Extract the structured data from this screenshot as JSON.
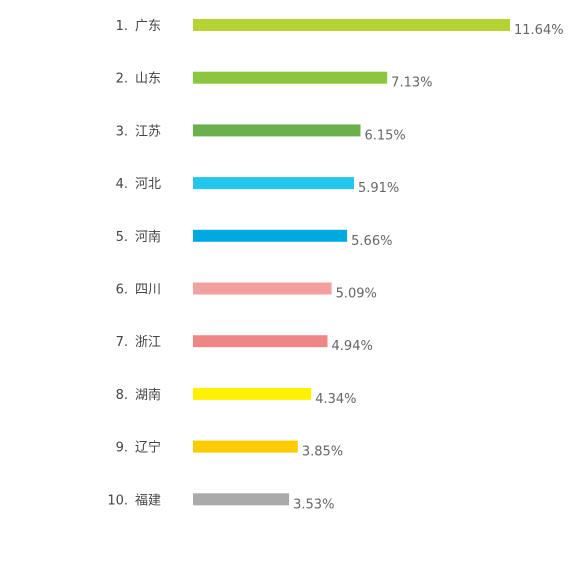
{
  "chart_data": {
    "type": "bar",
    "orientation": "horizontal",
    "categories": [
      "广东",
      "山东",
      "江苏",
      "河北",
      "河南",
      "四川",
      "浙江",
      "湖南",
      "辽宁",
      "福建"
    ],
    "ranks": [
      "1.",
      "2.",
      "3.",
      "4.",
      "5.",
      "6.",
      "7.",
      "8.",
      "9.",
      "10."
    ],
    "values": [
      11.64,
      7.13,
      6.15,
      5.91,
      5.66,
      5.09,
      4.94,
      4.34,
      3.85,
      3.53
    ],
    "value_labels": [
      "11.64%",
      "7.13%",
      "6.15%",
      "5.91%",
      "5.66%",
      "5.09%",
      "4.94%",
      "4.34%",
      "3.85%",
      "3.53%"
    ],
    "colors": [
      "#b5d334",
      "#8cc63f",
      "#6ab04c",
      "#23c7ed",
      "#00a9e0",
      "#f2a0a0",
      "#f08586",
      "#fff200",
      "#ffcc00",
      "#aaaaaa"
    ],
    "xlim": [
      0,
      11.64
    ],
    "grid": false,
    "legend": "none"
  }
}
